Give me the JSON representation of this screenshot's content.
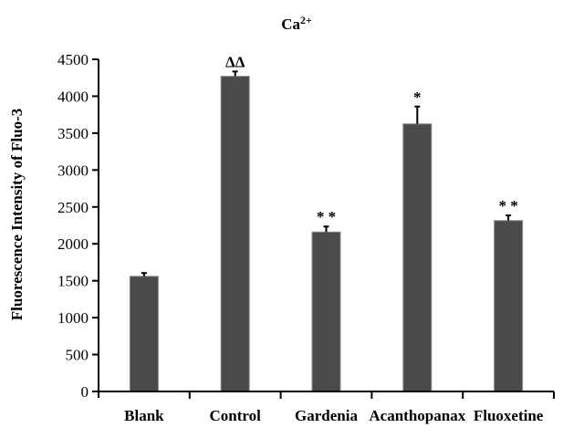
{
  "chart_data": {
    "type": "bar",
    "title": "Ca2+",
    "title_base": "Ca",
    "title_superscript": "2+",
    "xlabel": "",
    "ylabel": "Fluorescence Intensity of  Fluo-3",
    "ylim": [
      0,
      4500
    ],
    "yticks": [
      0,
      500,
      1000,
      1500,
      2000,
      2500,
      3000,
      3500,
      4000,
      4500
    ],
    "grid": false,
    "legend": null,
    "categories": [
      "Blank",
      "Control",
      "Gardenia",
      "Acanthopanax",
      "Fluoxetine"
    ],
    "values": [
      1560,
      4270,
      2160,
      3625,
      2315
    ],
    "error_bars": [
      45,
      65,
      75,
      235,
      70
    ],
    "annotations": [
      "",
      "ΔΔ",
      "* *",
      "*",
      "* *"
    ],
    "bar_color": "#4a4a4a",
    "bar_edge_color": "#8a8a8a"
  }
}
